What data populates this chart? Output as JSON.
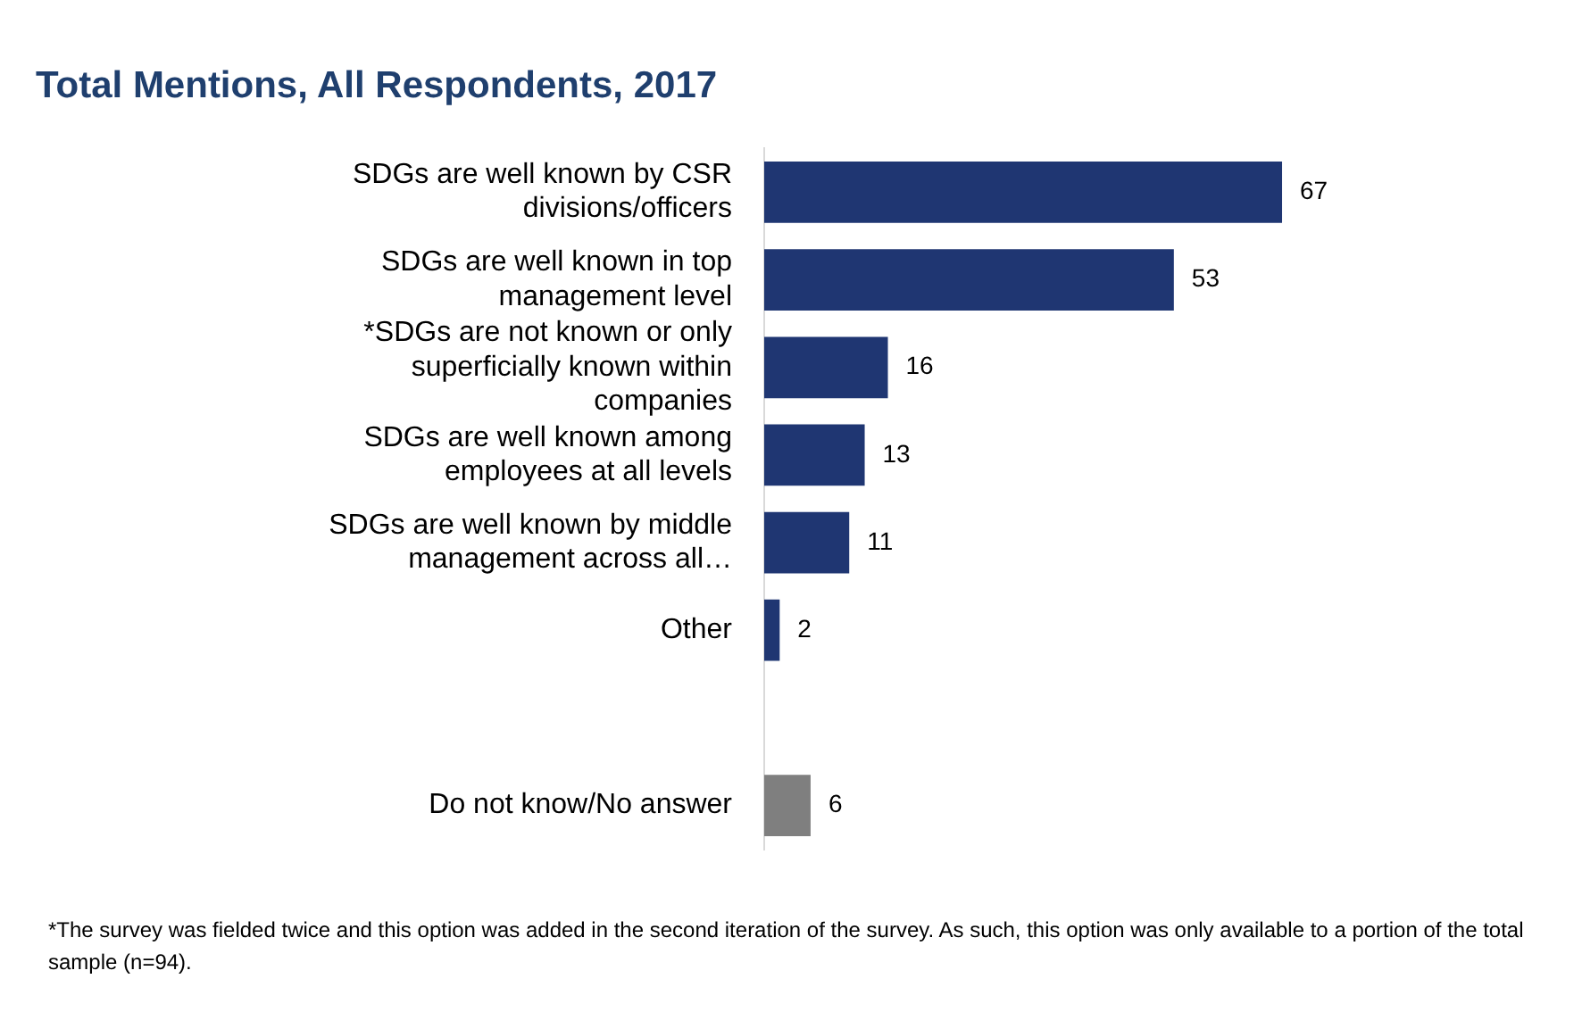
{
  "chart_data": {
    "type": "bar",
    "orientation": "horizontal",
    "title": "Total Mentions, All Respondents, 2017",
    "categories": [
      "SDGs are well known by CSR divisions/officers",
      "SDGs are well known in top management level",
      "*SDGs are not known or only superficially known within companies",
      "SDGs are well known among employees at all levels",
      "SDGs are well known by middle management across all…",
      "Other",
      null,
      "Do not know/No answer"
    ],
    "values": [
      67,
      53,
      16,
      13,
      11,
      2,
      null,
      6
    ],
    "colors": [
      "#1f3672",
      "#1f3672",
      "#1f3672",
      "#1f3672",
      "#1f3672",
      "#1f3672",
      "#1f3672",
      "#7f7f7f"
    ],
    "data_labels": true,
    "grid": false,
    "legend": false,
    "annotations": [
      "*The survey was fielded twice and this option was added in the second iteration of the survey. As such, this option was only available to a portion of the total sample (n=94)."
    ]
  }
}
